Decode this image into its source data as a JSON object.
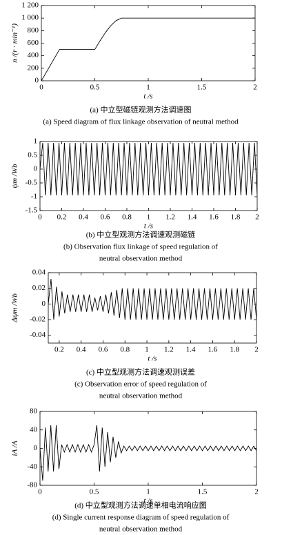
{
  "chart_data": [
    {
      "type": "line",
      "xlabel": "t /s",
      "ylabel": "n /(r · min⁻¹)",
      "caption": [
        "(a) 中立型磁链观测方法调速图",
        "(a) Speed diagram of flux linkage observation of neutral method"
      ],
      "xlim": [
        0,
        2
      ],
      "xticks": [
        0,
        0.5,
        1,
        1.5,
        2
      ],
      "ylim": [
        0,
        1200
      ],
      "yticks": [
        0,
        200,
        400,
        600,
        800,
        {
          "value": 1000,
          "label": "1 000"
        },
        {
          "value": 1200,
          "label": "1 200"
        }
      ],
      "grid": false,
      "color": "#000000",
      "x": [
        0,
        0.17,
        0.5,
        0.55,
        0.6,
        0.65,
        0.7,
        0.75,
        2
      ],
      "values": [
        0,
        500,
        500,
        640,
        770,
        880,
        960,
        1000,
        1000
      ]
    },
    {
      "type": "line",
      "xlabel": "t /s",
      "ylabel": "ψm /Wb",
      "caption": [
        "(b) 中立型观测方法调速观测磁链",
        "(b) Observation flux linkage of speed regulation of",
        "neutral observation method"
      ],
      "xlim": [
        0,
        2
      ],
      "xticks": [
        0,
        0.2,
        0.4,
        0.6,
        0.8,
        1,
        1.2,
        1.4,
        1.6,
        1.8,
        2
      ],
      "ylim": [
        -1.5,
        1
      ],
      "yticks": [
        -1.5,
        -1,
        -0.5,
        0,
        0.5,
        1
      ],
      "grid": false,
      "color": "#000000",
      "x": [
        0,
        0.025,
        0.05,
        0.075,
        0.1,
        0.125,
        0.15,
        0.175,
        0.2,
        0.225,
        0.25,
        0.275,
        0.3,
        0.325,
        0.35,
        0.375,
        0.4,
        0.425,
        0.45,
        0.475,
        0.5,
        0.525,
        0.55,
        0.575,
        0.6,
        0.625,
        0.65,
        0.675,
        0.7,
        0.725,
        0.75,
        0.775,
        0.8,
        0.825,
        0.85,
        0.875,
        0.9,
        0.925,
        0.95,
        0.975,
        1,
        1.025,
        1.05,
        1.075,
        1.1,
        1.125,
        1.15,
        1.175,
        1.2,
        1.225,
        1.25,
        1.275,
        1.3,
        1.325,
        1.35,
        1.375,
        1.4,
        1.425,
        1.45,
        1.475,
        1.5,
        1.525,
        1.55,
        1.575,
        1.6,
        1.625,
        1.65,
        1.675,
        1.7,
        1.725,
        1.75,
        1.775,
        1.8,
        1.825,
        1.85,
        1.875,
        1.9,
        1.925,
        1.95,
        1.975,
        2
      ],
      "values": [
        0,
        0.95,
        -0.95,
        0.95,
        -0.95,
        0.95,
        -0.95,
        0.95,
        -0.95,
        0.95,
        -0.95,
        0.95,
        -0.95,
        0.95,
        -0.95,
        0.95,
        -0.95,
        0.95,
        -0.95,
        0.95,
        -0.95,
        0.95,
        -0.95,
        0.95,
        -0.95,
        0.95,
        -0.95,
        0.95,
        -0.95,
        0.95,
        -0.95,
        0.95,
        -0.95,
        0.95,
        -0.95,
        0.95,
        -0.95,
        0.95,
        -0.95,
        0.95,
        -0.95,
        0.95,
        -0.95,
        0.95,
        -0.95,
        0.95,
        -0.95,
        0.95,
        -0.95,
        0.95,
        -0.95,
        0.95,
        -0.95,
        0.95,
        -0.95,
        0.95,
        -0.95,
        0.95,
        -0.95,
        0.95,
        -0.95,
        0.95,
        -0.95,
        0.95,
        -0.95,
        0.95,
        -0.95,
        0.95,
        -0.95,
        0.95,
        -0.95,
        0.95,
        -0.95,
        0.95,
        -0.95,
        0.95,
        -0.95,
        0.95,
        -0.95,
        0.95,
        -0.95
      ]
    },
    {
      "type": "line",
      "xlabel": "t /s",
      "ylabel": "Δψm /Wb",
      "caption": [
        "(c) 中立型观测方法调速观测误差",
        "(c) Observation error of speed regulation of",
        "neutral observation method"
      ],
      "xlim": [
        0.1,
        2
      ],
      "xticks": [
        0.2,
        0.4,
        0.6,
        0.8,
        1,
        1.2,
        1.4,
        1.6,
        1.8,
        2
      ],
      "ylim": [
        -0.05,
        0.04
      ],
      "yticks": [
        -0.04,
        -0.02,
        0,
        0.02,
        0.04
      ],
      "grid": false,
      "color": "#000000",
      "x": [
        0.1,
        0.125,
        0.15,
        0.175,
        0.2,
        0.225,
        0.25,
        0.275,
        0.3,
        0.325,
        0.35,
        0.375,
        0.4,
        0.425,
        0.45,
        0.475,
        0.5,
        0.525,
        0.55,
        0.575,
        0.6,
        0.625,
        0.65,
        0.675,
        0.7,
        0.725,
        0.75,
        0.775,
        0.8,
        0.825,
        0.85,
        0.875,
        0.9,
        0.925,
        0.95,
        0.975,
        1,
        1.025,
        1.05,
        1.075,
        1.1,
        1.125,
        1.15,
        1.175,
        1.2,
        1.225,
        1.25,
        1.275,
        1.3,
        1.325,
        1.35,
        1.375,
        1.4,
        1.425,
        1.45,
        1.475,
        1.5,
        1.525,
        1.55,
        1.575,
        1.6,
        1.625,
        1.65,
        1.675,
        1.7,
        1.725,
        1.75,
        1.775,
        1.8,
        1.825,
        1.85,
        1.875,
        1.9,
        1.925,
        1.95,
        1.975,
        2
      ],
      "values": [
        0,
        0.032,
        -0.02,
        0.022,
        -0.016,
        0.016,
        -0.012,
        0.012,
        -0.01,
        0.012,
        -0.01,
        0.012,
        -0.01,
        0.012,
        -0.01,
        0.012,
        -0.01,
        0.008,
        -0.008,
        0.01,
        -0.01,
        0.012,
        -0.012,
        0.015,
        -0.015,
        0.018,
        -0.018,
        0.02,
        -0.02,
        0.02,
        -0.02,
        0.02,
        -0.02,
        0.02,
        -0.02,
        0.02,
        -0.02,
        0.02,
        -0.02,
        0.02,
        -0.02,
        0.02,
        -0.02,
        0.02,
        -0.02,
        0.02,
        -0.02,
        0.02,
        -0.02,
        0.02,
        -0.02,
        0.02,
        -0.02,
        0.02,
        -0.02,
        0.02,
        -0.02,
        0.02,
        -0.02,
        0.02,
        -0.02,
        0.02,
        -0.02,
        0.02,
        -0.02,
        0.02,
        -0.02,
        0.02,
        -0.02,
        0.02,
        -0.02,
        0.02,
        -0.02,
        0.02,
        -0.02,
        0.02,
        -0.02
      ]
    },
    {
      "type": "line",
      "xlabel": "t /s",
      "ylabel": "iA /A",
      "caption": [
        "(d) 中立型观测方法调速单相电流响应图",
        "(d) Single current response diagram of speed regulation of",
        "neutral observation method"
      ],
      "xlim": [
        0,
        2
      ],
      "xticks": [
        0,
        0.5,
        1,
        1.5,
        2
      ],
      "ylim": [
        -80,
        80
      ],
      "yticks": [
        -80,
        -40,
        0,
        40,
        80
      ],
      "grid": false,
      "color": "#000000",
      "x": [
        0,
        0.025,
        0.05,
        0.075,
        0.1,
        0.125,
        0.15,
        0.175,
        0.2,
        0.225,
        0.25,
        0.275,
        0.3,
        0.325,
        0.35,
        0.375,
        0.4,
        0.425,
        0.45,
        0.475,
        0.5,
        0.525,
        0.55,
        0.575,
        0.6,
        0.625,
        0.65,
        0.675,
        0.7,
        0.725,
        0.75,
        0.775,
        0.8,
        0.825,
        0.85,
        0.875,
        0.9,
        0.925,
        0.95,
        0.975,
        1,
        1.025,
        1.05,
        1.075,
        1.1,
        1.125,
        1.15,
        1.175,
        1.2,
        1.225,
        1.25,
        1.275,
        1.3,
        1.325,
        1.35,
        1.375,
        1.4,
        1.425,
        1.45,
        1.475,
        1.5,
        1.525,
        1.55,
        1.575,
        1.6,
        1.625,
        1.65,
        1.675,
        1.7,
        1.725,
        1.75,
        1.775,
        1.8,
        1.825,
        1.85,
        1.875,
        1.9,
        1.925,
        1.95,
        1.975,
        2
      ],
      "values": [
        0,
        -70,
        45,
        -50,
        50,
        -50,
        50,
        -45,
        8,
        -8,
        8,
        -8,
        8,
        -8,
        8,
        -8,
        8,
        -8,
        8,
        -8,
        8,
        50,
        -50,
        45,
        -40,
        35,
        -30,
        25,
        -20,
        15,
        -10,
        5,
        -5,
        5,
        -5,
        5,
        -5,
        5,
        -5,
        5,
        -5,
        5,
        -5,
        5,
        -5,
        5,
        -5,
        5,
        -5,
        5,
        -5,
        5,
        -5,
        5,
        -5,
        5,
        -5,
        5,
        -5,
        5,
        -5,
        5,
        -5,
        5,
        -5,
        5,
        -5,
        5,
        -5,
        5,
        -5,
        5,
        -5,
        5,
        -5,
        5,
        -5,
        5,
        -5,
        5,
        -5
      ]
    }
  ]
}
